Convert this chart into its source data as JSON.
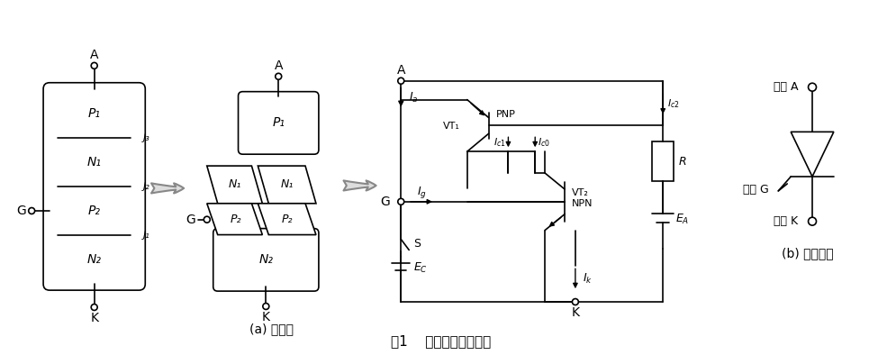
{
  "title": "图1    晶闸管等效图解图",
  "bg": "#ffffff",
  "fig_w": 9.65,
  "fig_h": 3.94,
  "dpi": 100,
  "lw": 1.2,
  "layer_names_bottom_to_top": [
    "N₂",
    "P₂",
    "N₁",
    "P₁"
  ],
  "junction_labels": [
    "J₁",
    "J₂",
    "J₃"
  ],
  "label_a": "A",
  "label_k": "K",
  "label_g": "G",
  "caption_a": "(a) 等效图",
  "caption_b": "(b) 器件符号",
  "fig_title": "图1    晶闸管等效图解图",
  "anode_label": "阳极 A",
  "gate_label": "门极 G",
  "cathode_label": "阴极 K",
  "pnp_label": "PNP",
  "npn_label": "NPN",
  "vt1_label": "VT₁",
  "vt2_label": "VT₂"
}
